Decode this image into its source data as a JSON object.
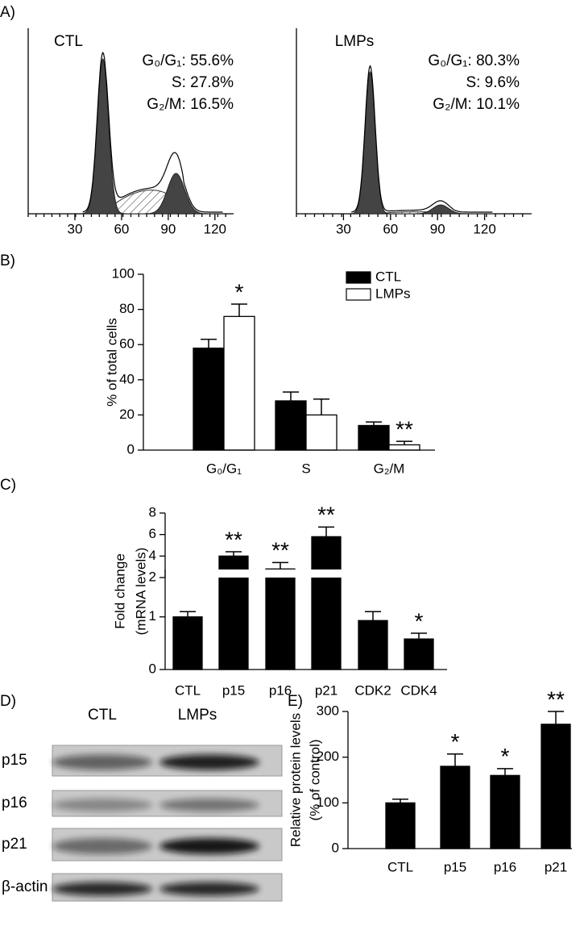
{
  "panel_labels": [
    "A)",
    "B)",
    "C)",
    "D)",
    "E)"
  ],
  "chart_data": [
    {
      "type": "area",
      "title": "CTL",
      "annotations": [
        "G₀/G₁: 55.6%",
        "S: 27.8%",
        "G₂/M: 16.5%"
      ],
      "xlim": [
        0,
        132
      ],
      "xticks": [
        30,
        60,
        90,
        120
      ]
    },
    {
      "type": "area",
      "title": "LMPs",
      "annotations": [
        "G₀/G₁: 80.3%",
        "S: 9.6%",
        "G₂/M: 10.1%"
      ],
      "xlim": [
        0,
        150
      ],
      "xticks": [
        30,
        60,
        90,
        120
      ]
    },
    {
      "type": "bar",
      "ylabel": [
        "% of total cells"
      ],
      "categories": [
        "G₀/G₁",
        "S",
        "G₂/M"
      ],
      "series": [
        {
          "name": "CTL",
          "color": "#000000",
          "values": [
            58,
            28,
            14
          ],
          "errors": [
            5,
            5,
            2
          ]
        },
        {
          "name": "LMPs",
          "color": "#ffffff",
          "values": [
            76,
            20,
            3
          ],
          "errors": [
            7,
            9,
            2
          ],
          "significance": [
            "*",
            null,
            "**"
          ]
        }
      ],
      "ylim": [
        0,
        100
      ],
      "yticks": [
        0,
        20,
        40,
        60,
        80,
        100
      ],
      "legend": "top-right"
    },
    {
      "type": "bar",
      "ylabel": [
        "Fold change",
        "(mRNA levels)"
      ],
      "categories": [
        "CTL",
        "p15",
        "p16",
        "p21",
        "CDK2",
        "CDK4"
      ],
      "series": [
        {
          "color": "#000000",
          "values": [
            1.0,
            4.0,
            2.8,
            5.8,
            0.93,
            0.58
          ],
          "errors": [
            0.1,
            0.4,
            0.6,
            0.9,
            0.17,
            0.11
          ],
          "significance": [
            null,
            "**",
            "**",
            "**",
            null,
            "*"
          ]
        }
      ],
      "ylim": [
        0,
        8
      ],
      "ybreak": [
        1.9,
        2
      ],
      "yticks": [
        0,
        1,
        2,
        4,
        6,
        8
      ]
    },
    {
      "type": "bar",
      "ylabel": [
        "Relative protein levels",
        "(% of control)"
      ],
      "categories": [
        "CTL",
        "p15",
        "p16",
        "p21"
      ],
      "series": [
        {
          "color": "#000000",
          "values": [
            100,
            180,
            160,
            272
          ],
          "errors": [
            8,
            27,
            15,
            28
          ],
          "significance": [
            null,
            "*",
            "*",
            "**"
          ]
        }
      ],
      "ylim": [
        0,
        300
      ],
      "yticks": [
        0,
        100,
        200,
        300
      ]
    }
  ],
  "blot": {
    "lanes": [
      "CTL",
      "LMPs"
    ],
    "rows": [
      "p15",
      "p16",
      "p21",
      "β-actin"
    ]
  }
}
